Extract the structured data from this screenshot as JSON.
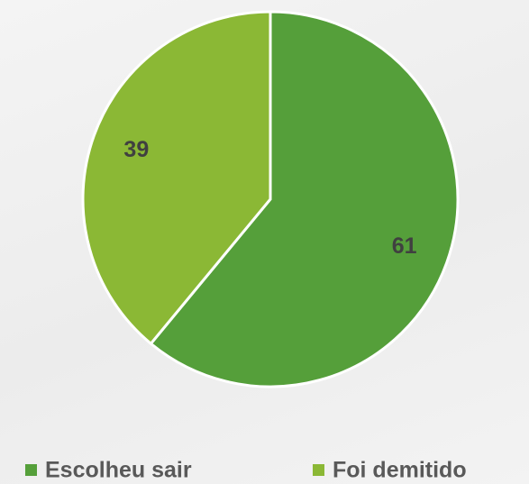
{
  "chart_data": {
    "type": "pie",
    "categories": [
      "Escolheu sair",
      "Foi demitido"
    ],
    "values": [
      61,
      39
    ],
    "colors": [
      "#559f3a",
      "#8bb835"
    ],
    "legend": "bottom"
  }
}
